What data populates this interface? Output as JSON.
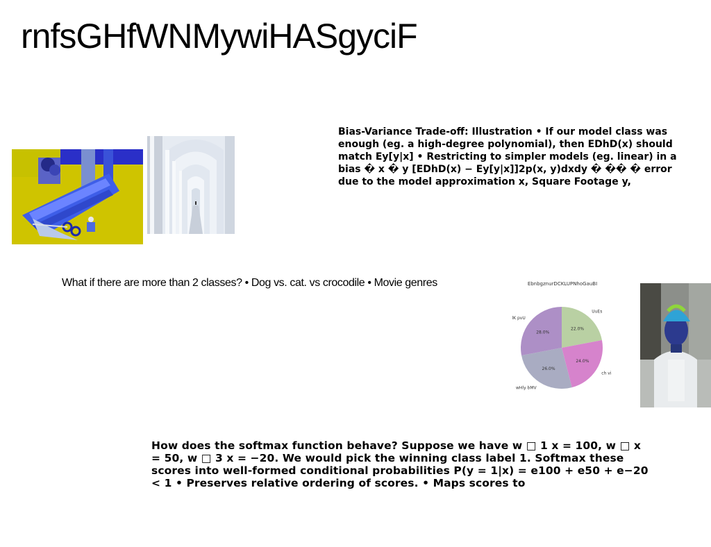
{
  "title": "rnfsGHfWNMywiHASgyciF",
  "bias_text": "Bias-Variance Trade-off: Illustration • If our model class was enough (eg. a high-degree polynomial), then EDhD(x) should match Ey[y|x] • Restricting to simpler models (eg. linear) in a bias � x � y [EDhD(x) − Ey[y|x]]2p(x, y)dxdy � �� � error due to the model approximation x, Square Footage y,",
  "classes_text": "What if there are more than 2 classes? • Dog vs. cat. vs crocodile • Movie genres",
  "softmax_text": "How does the softmax function behave? Suppose we have w □ 1 x = 100, w □ x = 50, w □ 3 x = −20. We would pick the winning class label 1. Softmax these scores into well-formed conditional probabilities P(y = 1|x) = e100 + e50 + e−20 < 1 • Preserves relative ordering of scores. • Maps scores to",
  "images": {
    "gift": "gift-wrapping-photo",
    "arches": "white-arched-corridor-photo",
    "person": "person-in-knit-hat-photo"
  },
  "chart_data": {
    "type": "pie",
    "title": "EbnbgznurDCKLUPNhoGauBI",
    "labels": [
      "UuEs",
      "ch vi",
      "wHly bMV",
      "lK pvU"
    ],
    "values": [
      22.0,
      24.0,
      26.0,
      28.0
    ],
    "value_labels": [
      "22.0%",
      "24.0%",
      "26.0%",
      "28.0%"
    ],
    "colors": [
      "#b9d0a3",
      "#d683cc",
      "#a9acc2",
      "#ad8fc6"
    ],
    "start_angle_deg": 90,
    "direction": "clockwise"
  }
}
